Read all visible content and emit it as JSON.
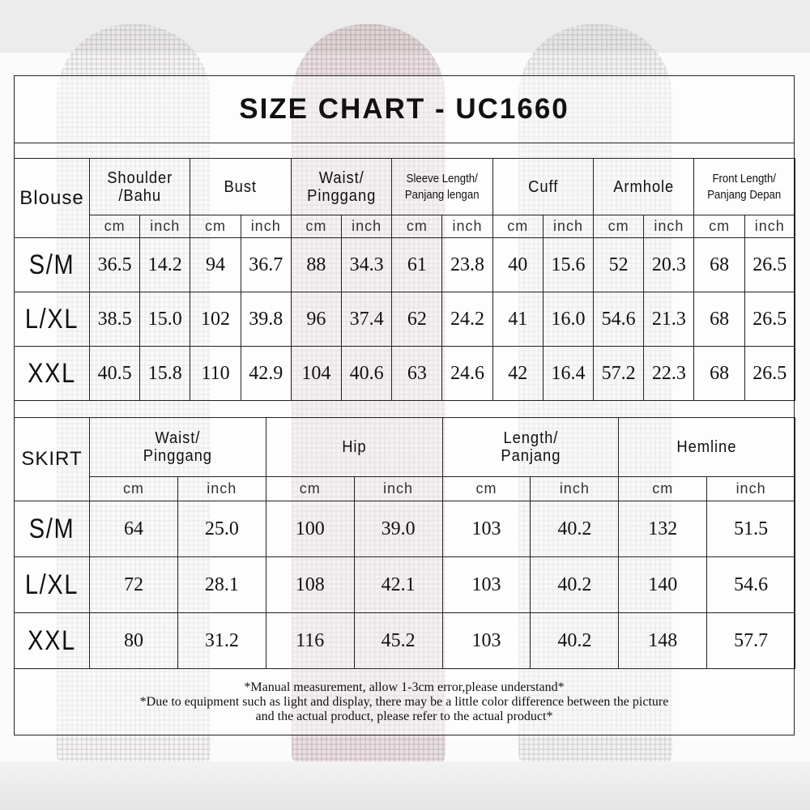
{
  "title": "SIZE CHART - UC1660",
  "blouse": {
    "label": "Blouse",
    "columns": [
      {
        "line1": "Shoulder",
        "line2": "/Bahu"
      },
      {
        "line1": "Bust",
        "line2": ""
      },
      {
        "line1": "Waist/",
        "line2": "Pinggang"
      },
      {
        "line1": "Sleeve Length/",
        "line2": "Panjang lengan"
      },
      {
        "line1": "Cuff",
        "line2": ""
      },
      {
        "line1": "Armhole",
        "line2": ""
      },
      {
        "line1": "Front Length/",
        "line2": "Panjang Depan"
      }
    ],
    "units": [
      "cm",
      "inch"
    ],
    "rows": [
      {
        "size": "S/M",
        "values": [
          "36.5",
          "14.2",
          "94",
          "36.7",
          "88",
          "34.3",
          "61",
          "23.8",
          "40",
          "15.6",
          "52",
          "20.3",
          "68",
          "26.5"
        ]
      },
      {
        "size": "L/XL",
        "values": [
          "38.5",
          "15.0",
          "102",
          "39.8",
          "96",
          "37.4",
          "62",
          "24.2",
          "41",
          "16.0",
          "54.6",
          "21.3",
          "68",
          "26.5"
        ]
      },
      {
        "size": "XXL",
        "values": [
          "40.5",
          "15.8",
          "110",
          "42.9",
          "104",
          "40.6",
          "63",
          "24.6",
          "42",
          "16.4",
          "57.2",
          "22.3",
          "68",
          "26.5"
        ]
      }
    ]
  },
  "skirt": {
    "label": "SKIRT",
    "columns": [
      {
        "line1": "Waist/",
        "line2": "Pinggang"
      },
      {
        "line1": "Hip",
        "line2": ""
      },
      {
        "line1": "Length/",
        "line2": "Panjang"
      },
      {
        "line1": "Hemline",
        "line2": ""
      }
    ],
    "units": [
      "cm",
      "inch"
    ],
    "rows": [
      {
        "size": "S/M",
        "values": [
          "64",
          "25.0",
          "100",
          "39.0",
          "103",
          "40.2",
          "132",
          "51.5"
        ]
      },
      {
        "size": "L/XL",
        "values": [
          "72",
          "28.1",
          "108",
          "42.1",
          "103",
          "40.2",
          "140",
          "54.6"
        ]
      },
      {
        "size": "XXL",
        "values": [
          "80",
          "31.2",
          "116",
          "45.2",
          "103",
          "40.2",
          "148",
          "57.7"
        ]
      }
    ]
  },
  "notes": [
    "*Manual measurement, allow 1-3cm error,please understand*",
    "*Due to equipment such as light and display, there may be a little color difference between the picture",
    "and the actual product, please refer to the actual product*"
  ]
}
